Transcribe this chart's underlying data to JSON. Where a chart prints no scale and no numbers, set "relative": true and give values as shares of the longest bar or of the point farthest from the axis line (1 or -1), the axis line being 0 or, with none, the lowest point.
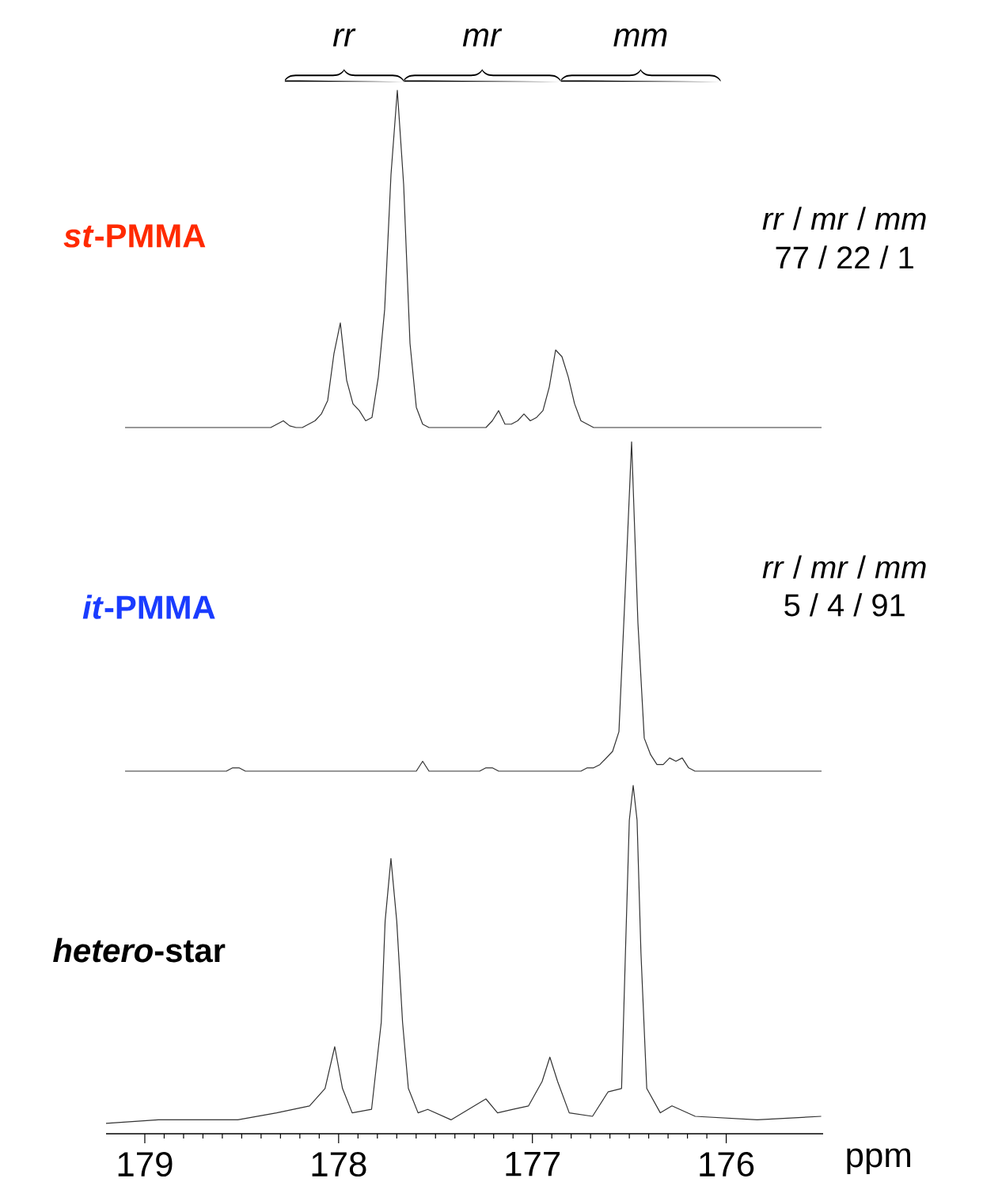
{
  "chart_data": [
    {
      "type": "line",
      "title": "*st*-PMMA",
      "relative": true,
      "tick_labels": false,
      "color": "#333333",
      "annotations": [
        "*rr*",
        "*mr*",
        "*mm*",
        "*rr* / *mr* / *mm*",
        "77 / 22 / 1"
      ],
      "categories": [
        null,
        null,
        null,
        null,
        null,
        null,
        null,
        null,
        null,
        null,
        null,
        null,
        null,
        null,
        null,
        null,
        null,
        null,
        null,
        null,
        null,
        null,
        null,
        null,
        null,
        null,
        null,
        null,
        null,
        null,
        null,
        null,
        null,
        null,
        null,
        null,
        null,
        null,
        null,
        null,
        null,
        null,
        null,
        null,
        null,
        null,
        null,
        null,
        null,
        null,
        null,
        null,
        null,
        null,
        null,
        null,
        null,
        null,
        null,
        null,
        null,
        null,
        null,
        null,
        null,
        null,
        null,
        null,
        null,
        null,
        null,
        null,
        null,
        null,
        null,
        null,
        null,
        null,
        null,
        null,
        null,
        null,
        null,
        null,
        null,
        null,
        null,
        null,
        null,
        null,
        null,
        null,
        null,
        null,
        null,
        null,
        null,
        null,
        null,
        null,
        null,
        null,
        null,
        null,
        null,
        null,
        null,
        null,
        null,
        null,
        null
      ],
      "values": [
        0,
        0,
        0,
        0,
        0,
        0,
        0,
        0,
        0,
        0,
        0,
        0,
        0,
        0,
        0,
        0,
        0,
        0,
        0,
        0,
        0,
        0,
        0,
        0,
        0.01,
        0.02,
        0.005,
        0,
        0,
        0.01,
        0.02,
        0.04,
        0.08,
        0.22,
        0.31,
        0.14,
        0.07,
        0.05,
        0.02,
        0.03,
        0.15,
        0.35,
        0.75,
        1,
        0.72,
        0.25,
        0.06,
        0.01,
        0,
        0,
        0,
        0,
        0,
        0,
        0,
        0,
        0,
        0,
        0.02,
        0.05,
        0.01,
        0.01,
        0.02,
        0.04,
        0.02,
        0.03,
        0.05,
        0.12,
        0.23,
        0.21,
        0.15,
        0.07,
        0.02,
        0.01,
        0,
        0,
        0,
        0,
        0,
        0,
        0,
        0,
        0,
        0,
        0,
        0,
        0,
        0,
        0,
        0,
        0,
        0,
        0,
        0,
        0,
        0,
        0,
        0,
        0,
        0,
        0,
        0,
        0,
        0,
        0,
        0,
        0,
        0,
        0,
        0,
        0
      ]
    },
    {
      "type": "line",
      "title": "*it*-PMMA",
      "relative": true,
      "tick_labels": false,
      "color": "#333333",
      "annotations": [
        "*rr* / *mr* / *mm*",
        "5 / 4 / 91"
      ],
      "categories": [
        null,
        null,
        null,
        null,
        null,
        null,
        null,
        null,
        null,
        null,
        null,
        null,
        null,
        null,
        null,
        null,
        null,
        null,
        null,
        null,
        null,
        null,
        null,
        null,
        null,
        null,
        null,
        null,
        null,
        null,
        null,
        null,
        null,
        null,
        null,
        null,
        null,
        null,
        null,
        null,
        null,
        null,
        null,
        null,
        null,
        null,
        null,
        null,
        null,
        null,
        null,
        null,
        null,
        null,
        null,
        null,
        null,
        null,
        null,
        null,
        null,
        null,
        null,
        null,
        null,
        null,
        null,
        null,
        null,
        null,
        null,
        null,
        null,
        null,
        null,
        null,
        null,
        null,
        null,
        null,
        null,
        null,
        null,
        null,
        null,
        null,
        null,
        null,
        null,
        null,
        null,
        null,
        null,
        null,
        null,
        null,
        null,
        null,
        null,
        null,
        null,
        null,
        null,
        null,
        null,
        null,
        null,
        null,
        null,
        null,
        null
      ],
      "values": [
        0,
        0,
        0,
        0,
        0,
        0,
        0,
        0,
        0,
        0,
        0,
        0,
        0,
        0,
        0,
        0,
        0,
        0.01,
        0.01,
        0,
        0,
        0,
        0,
        0,
        0,
        0,
        0,
        0,
        0,
        0,
        0,
        0,
        0,
        0,
        0,
        0,
        0,
        0,
        0,
        0,
        0,
        0,
        0,
        0,
        0,
        0,
        0,
        0.03,
        0,
        0,
        0,
        0,
        0,
        0,
        0,
        0,
        0,
        0.01,
        0.01,
        0,
        0,
        0,
        0,
        0,
        0,
        0,
        0,
        0,
        0,
        0,
        0,
        0,
        0,
        0.01,
        0.01,
        0.02,
        0.04,
        0.06,
        0.12,
        0.55,
        1,
        0.45,
        0.1,
        0.05,
        0.02,
        0.02,
        0.04,
        0.03,
        0.04,
        0.01,
        0,
        0,
        0,
        0,
        0,
        0,
        0,
        0,
        0,
        0,
        0,
        0,
        0,
        0,
        0,
        0,
        0,
        0,
        0,
        0,
        0
      ]
    },
    {
      "type": "line",
      "title": "*hetero*-star",
      "relative": true,
      "tick_labels": "x",
      "xlim": [
        179.2,
        175.5
      ],
      "xticks": [
        179,
        178,
        177,
        176
      ],
      "xlabel": "ppm",
      "color": "#333333",
      "x": [
        179.2,
        178.93,
        178.52,
        178.32,
        178.15,
        178.07,
        178.02,
        177.98,
        177.93,
        177.83,
        177.78,
        177.76,
        177.73,
        177.7,
        177.67,
        177.64,
        177.59,
        177.54,
        177.42,
        177.24,
        177.18,
        177.1,
        177.02,
        176.95,
        176.91,
        176.87,
        176.81,
        176.69,
        176.61,
        176.54,
        176.52,
        176.5,
        176.48,
        176.46,
        176.44,
        176.41,
        176.34,
        176.28,
        176.16,
        175.84,
        175.51
      ],
      "values": [
        0.03,
        0.04,
        0.04,
        0.06,
        0.08,
        0.13,
        0.25,
        0.13,
        0.06,
        0.07,
        0.32,
        0.61,
        0.79,
        0.61,
        0.32,
        0.13,
        0.06,
        0.07,
        0.04,
        0.1,
        0.06,
        0.07,
        0.08,
        0.15,
        0.22,
        0.15,
        0.06,
        0.05,
        0.12,
        0.13,
        0.52,
        0.9,
        1,
        0.9,
        0.52,
        0.13,
        0.06,
        0.08,
        0.05,
        0.04,
        0.05
      ]
    }
  ]
}
